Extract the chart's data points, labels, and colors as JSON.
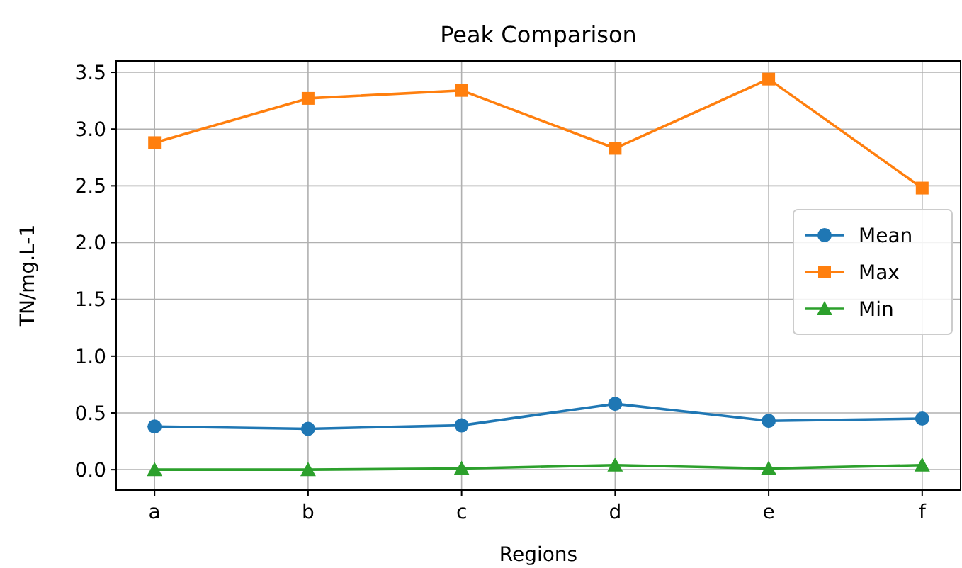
{
  "chart_data": {
    "type": "line",
    "title": "Peak Comparison",
    "xlabel": "Regions",
    "ylabel": "TN/mg.L-1",
    "categories": [
      "a",
      "b",
      "c",
      "d",
      "e",
      "f"
    ],
    "ylim": [
      -0.18,
      3.6
    ],
    "yticks": [
      {
        "value": 0,
        "label": "0.0"
      },
      {
        "value": 0.5,
        "label": "0.5"
      },
      {
        "value": 1,
        "label": "1.0"
      },
      {
        "value": 1.5,
        "label": "1.5"
      },
      {
        "value": 2,
        "label": "2.0"
      },
      {
        "value": 2.5,
        "label": "2.5"
      },
      {
        "value": 3,
        "label": "3.0"
      },
      {
        "value": 3.5,
        "label": "3.5"
      }
    ],
    "grid": true,
    "legend": "right",
    "series": [
      {
        "name": "Mean",
        "color": "#1f77b4",
        "marker": "circle",
        "values": [
          0.38,
          0.36,
          0.39,
          0.58,
          0.43,
          0.45
        ]
      },
      {
        "name": "Max",
        "color": "#ff7f0e",
        "marker": "square",
        "values": [
          2.88,
          3.27,
          3.34,
          2.83,
          3.44,
          2.48
        ]
      },
      {
        "name": "Min",
        "color": "#2ca02c",
        "marker": "triangle",
        "values": [
          0.0,
          0.0,
          0.01,
          0.04,
          0.01,
          0.04
        ]
      }
    ]
  }
}
